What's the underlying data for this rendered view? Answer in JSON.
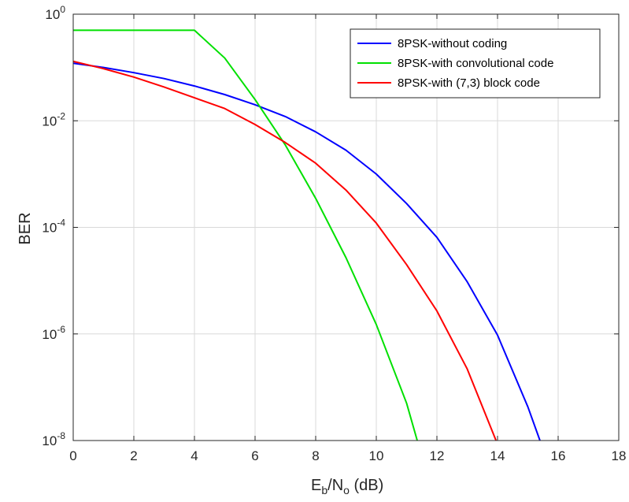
{
  "chart_data": {
    "type": "line",
    "xlabel": {
      "main": "E",
      "sub1": "b",
      "mid": "/N",
      "sub2": "o",
      "tail": " (dB)"
    },
    "ylabel": "BER",
    "xlim": [
      0,
      18
    ],
    "ylim": [
      1e-08,
      1
    ],
    "yscale": "log",
    "grid": true,
    "legend_position": "top-right",
    "xticks": [
      "0",
      "2",
      "4",
      "6",
      "8",
      "10",
      "12",
      "14",
      "16",
      "18"
    ],
    "yticks": [
      {
        "base": "10",
        "exp": "0",
        "value": 1
      },
      {
        "base": "10",
        "exp": "-2",
        "value": 0.01
      },
      {
        "base": "10",
        "exp": "-4",
        "value": 0.0001
      },
      {
        "base": "10",
        "exp": "-6",
        "value": 1e-06
      },
      {
        "base": "10",
        "exp": "-8",
        "value": 1e-08
      }
    ],
    "series": [
      {
        "name": "8PSK-without coding",
        "color": "#0000ff",
        "x": [
          0,
          1,
          2,
          3,
          4,
          5,
          6,
          7,
          8,
          9,
          10,
          11,
          12,
          13,
          14,
          15,
          15.4
        ],
        "y": [
          0.12,
          0.1,
          0.08,
          0.062,
          0.045,
          0.031,
          0.02,
          0.012,
          0.0062,
          0.0028,
          0.001,
          0.00028,
          6.5e-05,
          9.5e-06,
          9.5e-07,
          4.3e-08,
          1e-08
        ]
      },
      {
        "name": "8PSK-with convolutional code",
        "color": "#00e000",
        "x": [
          0,
          1,
          2,
          3,
          4,
          5,
          6,
          7,
          8,
          9,
          10,
          11,
          11.35
        ],
        "y": [
          0.5,
          0.5,
          0.5,
          0.5,
          0.5,
          0.15,
          0.025,
          0.0035,
          0.00035,
          2.7e-05,
          1.5e-06,
          5e-08,
          1e-08
        ]
      },
      {
        "name": "8PSK-with (7,3) block code",
        "color": "#ff0000",
        "x": [
          0,
          1,
          2,
          3,
          4,
          5,
          6,
          7,
          8,
          9,
          10,
          11,
          12,
          13,
          13.95
        ],
        "y": [
          0.13,
          0.095,
          0.066,
          0.043,
          0.027,
          0.017,
          0.0085,
          0.0039,
          0.0016,
          0.0005,
          0.00012,
          2e-05,
          2.7e-06,
          2.2e-07,
          1e-08
        ]
      }
    ]
  }
}
